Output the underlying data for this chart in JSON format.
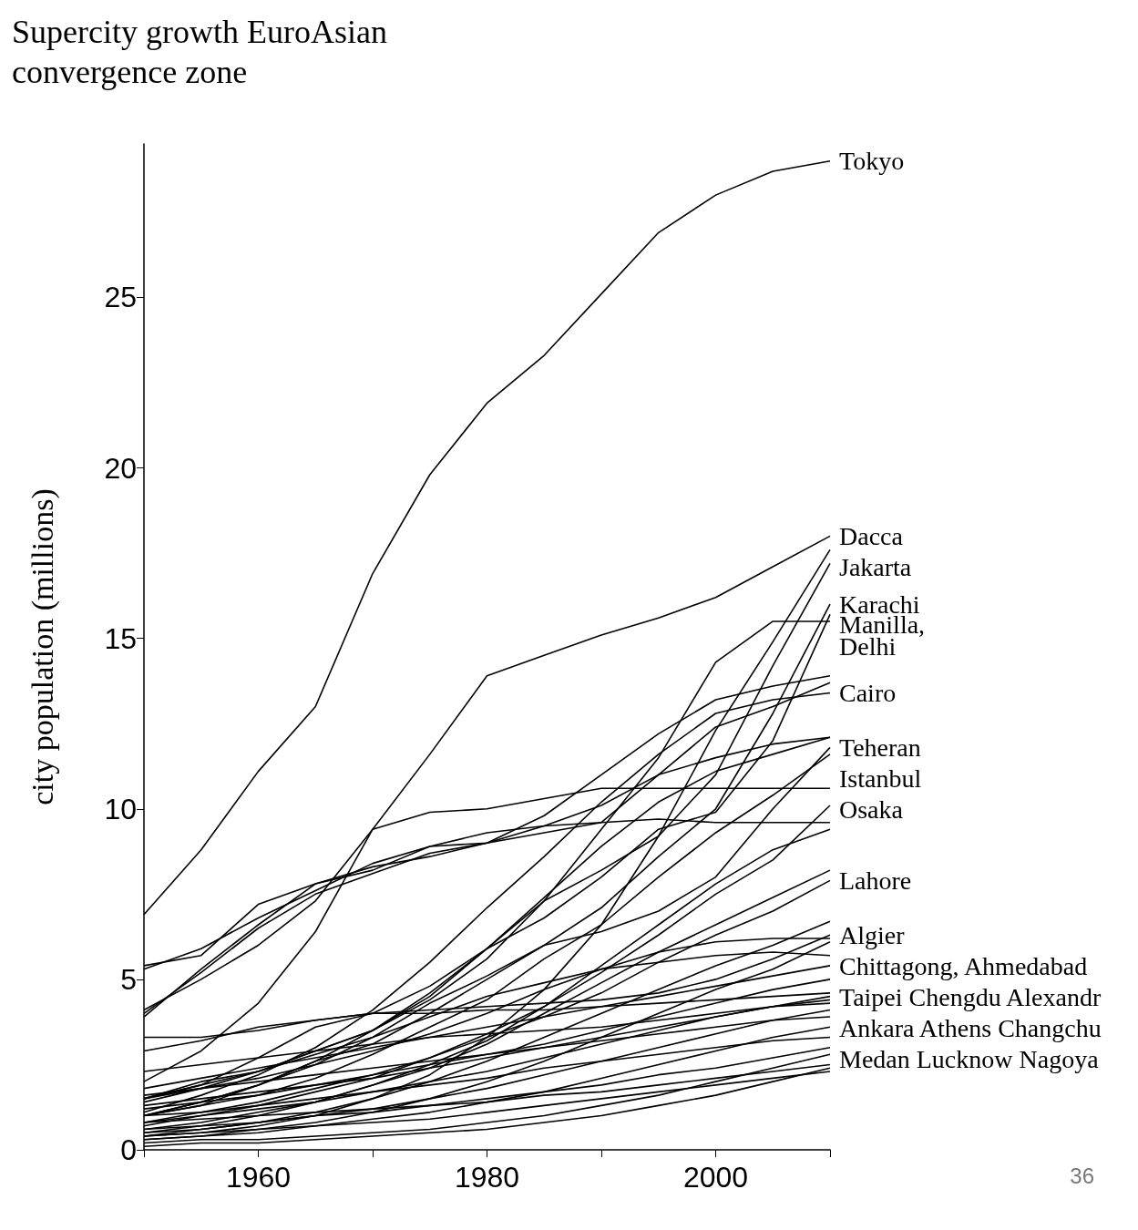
{
  "chart_data": {
    "type": "line",
    "title": "Supercity growth EuroAsian convergence zone",
    "ylabel": "city population (millions)",
    "x": [
      1950,
      1955,
      1960,
      1965,
      1970,
      1975,
      1980,
      1985,
      1990,
      1995,
      2000,
      2005,
      2010
    ],
    "xlim": [
      1950,
      2010
    ],
    "xticks": [
      {
        "value": 1950,
        "label": null
      },
      1960,
      {
        "value": 1970,
        "label": null
      },
      1980,
      {
        "value": 1990,
        "label": null
      },
      2000,
      {
        "value": 2010,
        "label": null
      }
    ],
    "ylim": [
      0,
      29.5
    ],
    "yticks": [
      0,
      5,
      10,
      15,
      20,
      25
    ],
    "grid": false,
    "legend": false,
    "marker": "none",
    "series": [
      {
        "name": "Tokyo",
        "color": "#000000",
        "values": [
          6.9,
          8.8,
          11.1,
          13.0,
          16.9,
          19.8,
          21.9,
          23.3,
          25.1,
          26.9,
          28.0,
          28.7,
          29.0
        ]
      },
      {
        "name": "Dacca",
        "color": "#000000",
        "values": [
          2.0,
          2.9,
          4.3,
          6.4,
          9.4,
          11.6,
          13.9,
          14.5,
          15.1,
          15.6,
          16.2,
          17.1,
          18.0
        ]
      },
      {
        "name": "Jakarta",
        "color": "#000000",
        "values": [
          0.4,
          0.5,
          0.7,
          1.0,
          1.5,
          2.2,
          3.3,
          4.7,
          6.6,
          9.2,
          12.3,
          14.9,
          17.6
        ]
      },
      {
        "color": "#000000",
        "values": [
          1.5,
          1.9,
          2.7,
          3.6,
          4.0,
          4.8,
          5.9,
          7.3,
          8.2,
          9.2,
          11.0,
          14.2,
          17.2
        ]
      },
      {
        "name": "Karachi",
        "color": "#000000",
        "values": [
          1.0,
          1.4,
          1.9,
          2.6,
          3.1,
          4.0,
          5.0,
          6.0,
          7.1,
          8.6,
          10.0,
          12.8,
          16.0
        ]
      },
      {
        "name": "Manilla,\nDelhi",
        "color": "#000000",
        "values": [
          1.5,
          2.0,
          2.3,
          2.9,
          3.5,
          4.5,
          5.9,
          6.8,
          8.0,
          9.4,
          9.9,
          12.0,
          15.7
        ]
      },
      {
        "color": "#000000",
        "values": [
          1.4,
          1.8,
          2.3,
          2.9,
          3.5,
          4.4,
          5.6,
          7.3,
          9.4,
          11.5,
          14.3,
          15.5,
          15.5
        ]
      },
      {
        "color": "#000000",
        "values": [
          4.0,
          5.2,
          6.5,
          7.5,
          8.1,
          8.7,
          9.0,
          9.8,
          11.0,
          12.2,
          13.2,
          13.6,
          13.9
        ]
      },
      {
        "color": "#000000",
        "values": [
          5.3,
          5.9,
          6.8,
          7.6,
          8.4,
          8.9,
          9.0,
          9.3,
          9.6,
          11.0,
          12.4,
          13.0,
          13.7
        ]
      },
      {
        "name": "Cairo",
        "color": "#000000",
        "values": [
          1.1,
          1.6,
          2.2,
          3.0,
          4.1,
          5.5,
          7.1,
          8.6,
          10.2,
          11.6,
          12.8,
          13.2,
          13.4
        ]
      },
      {
        "color": "#000000",
        "values": [
          3.9,
          5.3,
          6.6,
          7.8,
          8.2,
          8.9,
          9.3,
          9.5,
          9.6,
          9.7,
          9.6,
          9.6,
          9.6
        ]
      },
      {
        "name": "Osaka",
        "color": "#000000",
        "values": [
          4.1,
          5.0,
          6.0,
          7.3,
          9.4,
          9.9,
          10.0,
          10.3,
          10.6,
          10.6,
          10.6,
          10.6,
          10.6
        ]
      },
      {
        "name": "Teheran",
        "color": "#000000",
        "values": [
          1.0,
          1.3,
          1.9,
          2.5,
          3.3,
          4.3,
          5.1,
          6.0,
          6.4,
          7.0,
          8.0,
          10.0,
          11.8
        ]
      },
      {
        "name": "Istanbul",
        "color": "#000000",
        "values": [
          1.0,
          1.3,
          1.6,
          2.1,
          2.8,
          3.6,
          4.4,
          5.6,
          6.6,
          8.0,
          9.3,
          10.4,
          11.6
        ]
      },
      {
        "color": "#000000",
        "values": [
          5.4,
          5.7,
          7.2,
          7.8,
          8.3,
          8.6,
          9.0,
          9.5,
          10.1,
          11.0,
          11.5,
          11.9,
          12.1
        ]
      },
      {
        "color": "#000000",
        "values": [
          1.0,
          1.4,
          1.9,
          2.6,
          3.5,
          4.6,
          5.9,
          7.4,
          8.9,
          10.2,
          11.1,
          11.6,
          12.1
        ]
      },
      {
        "name": "Lahore",
        "color": "#000000",
        "values": [
          0.8,
          1.1,
          1.4,
          1.8,
          2.2,
          2.7,
          3.3,
          3.9,
          4.6,
          5.5,
          6.3,
          7.0,
          7.9
        ]
      },
      {
        "color": "#000000",
        "values": [
          0.6,
          0.8,
          1.1,
          1.4,
          1.9,
          2.5,
          3.2,
          4.2,
          5.4,
          6.6,
          7.8,
          8.8,
          9.4
        ]
      },
      {
        "color": "#000000",
        "values": [
          0.7,
          1.0,
          1.3,
          1.7,
          2.1,
          2.7,
          3.4,
          4.2,
          5.2,
          6.3,
          7.5,
          8.5,
          10.1
        ]
      },
      {
        "color": "#000000",
        "values": [
          0.5,
          0.7,
          1.0,
          1.4,
          1.9,
          2.4,
          3.1,
          4.0,
          4.9,
          5.8,
          6.6,
          7.4,
          8.2
        ]
      },
      {
        "color": "#000000",
        "values": [
          0.4,
          0.6,
          0.8,
          1.1,
          1.5,
          2.0,
          2.6,
          3.3,
          4.0,
          4.7,
          5.4,
          6.0,
          6.7
        ]
      },
      {
        "name": "Algier",
        "color": "#000000",
        "values": [
          3.3,
          3.3,
          3.5,
          3.8,
          4.0,
          4.1,
          4.2,
          4.3,
          4.4,
          4.6,
          5.0,
          5.6,
          6.3
        ]
      },
      {
        "color": "#000000",
        "values": [
          2.9,
          3.2,
          3.6,
          3.8,
          4.0,
          4.0,
          4.1,
          4.1,
          4.2,
          4.3,
          4.4,
          4.5,
          4.6
        ]
      },
      {
        "color": "#000000",
        "values": [
          1.5,
          1.9,
          2.3,
          2.8,
          3.3,
          3.9,
          4.5,
          4.9,
          5.3,
          5.5,
          5.7,
          5.8,
          5.7
        ]
      },
      {
        "color": "#000000",
        "values": [
          0.3,
          0.4,
          0.6,
          0.8,
          1.1,
          1.5,
          2.0,
          2.6,
          3.3,
          4.0,
          4.7,
          5.3,
          6.1
        ]
      },
      {
        "name": "Chittagong, Ahmedabad",
        "color": "#000000",
        "values": [
          1.8,
          2.1,
          2.4,
          2.7,
          3.0,
          3.3,
          3.6,
          3.9,
          4.2,
          4.5,
          4.8,
          5.1,
          5.4
        ]
      },
      {
        "color": "#000000",
        "values": [
          1.2,
          1.4,
          1.6,
          1.9,
          2.2,
          2.5,
          2.8,
          3.1,
          3.5,
          3.9,
          4.3,
          4.7,
          5.0
        ]
      },
      {
        "name": "Taipei Chengdu Alexandr",
        "color": "#000000",
        "values": [
          0.8,
          1.0,
          1.2,
          1.4,
          1.7,
          2.0,
          2.3,
          2.7,
          3.1,
          3.5,
          3.9,
          4.2,
          4.5
        ]
      },
      {
        "color": "#000000",
        "values": [
          0.5,
          0.6,
          0.8,
          1.0,
          1.2,
          1.5,
          1.8,
          2.2,
          2.6,
          3.0,
          3.4,
          3.8,
          4.1
        ]
      },
      {
        "color": "#000000",
        "values": [
          1.6,
          1.8,
          2.0,
          2.2,
          2.4,
          2.6,
          2.8,
          3.0,
          3.2,
          3.4,
          3.6,
          3.8,
          3.9
        ]
      },
      {
        "name": "Ankara Athens Changchu",
        "color": "#000000",
        "values": [
          0.3,
          0.4,
          0.5,
          0.7,
          0.9,
          1.1,
          1.4,
          1.7,
          2.1,
          2.5,
          2.9,
          3.3,
          3.6
        ]
      },
      {
        "color": "#000000",
        "values": [
          1.0,
          1.1,
          1.3,
          1.5,
          1.7,
          1.9,
          2.1,
          2.4,
          2.6,
          2.8,
          3.0,
          3.2,
          3.3
        ]
      },
      {
        "color": "#000000",
        "values": [
          0.6,
          0.7,
          0.8,
          1.0,
          1.1,
          1.3,
          1.5,
          1.7,
          1.9,
          2.2,
          2.4,
          2.7,
          3.0
        ]
      },
      {
        "name": "Medan Lucknow Nagoya",
        "color": "#000000",
        "values": [
          0.2,
          0.3,
          0.3,
          0.4,
          0.5,
          0.6,
          0.8,
          1.0,
          1.3,
          1.6,
          2.0,
          2.4,
          2.8
        ]
      },
      {
        "color": "#000000",
        "values": [
          0.1,
          0.2,
          0.2,
          0.3,
          0.4,
          0.5,
          0.6,
          0.8,
          1.0,
          1.3,
          1.6,
          2.0,
          2.4
        ]
      },
      {
        "color": "#000000",
        "values": [
          0.8,
          0.9,
          1.0,
          1.1,
          1.2,
          1.3,
          1.4,
          1.6,
          1.7,
          1.9,
          2.1,
          2.3,
          2.5
        ]
      },
      {
        "color": "#000000",
        "values": [
          0.4,
          0.5,
          0.6,
          0.7,
          0.8,
          0.9,
          1.1,
          1.3,
          1.5,
          1.7,
          1.9,
          2.1,
          2.3
        ]
      },
      {
        "color": "#000000",
        "values": [
          1.3,
          1.5,
          1.7,
          1.9,
          2.1,
          2.4,
          2.7,
          3.0,
          3.3,
          3.6,
          3.9,
          4.2,
          4.4
        ]
      },
      {
        "color": "#000000",
        "values": [
          2.3,
          2.5,
          2.7,
          2.9,
          3.1,
          3.3,
          3.4,
          3.5,
          3.6,
          3.8,
          4.0,
          4.2,
          4.3
        ]
      },
      {
        "color": "#000000",
        "values": [
          1.5,
          1.8,
          2.1,
          2.5,
          2.9,
          3.4,
          4.0,
          4.7,
          5.3,
          5.8,
          6.1,
          6.2,
          6.2
        ]
      }
    ],
    "annotations": [
      "36"
    ]
  }
}
